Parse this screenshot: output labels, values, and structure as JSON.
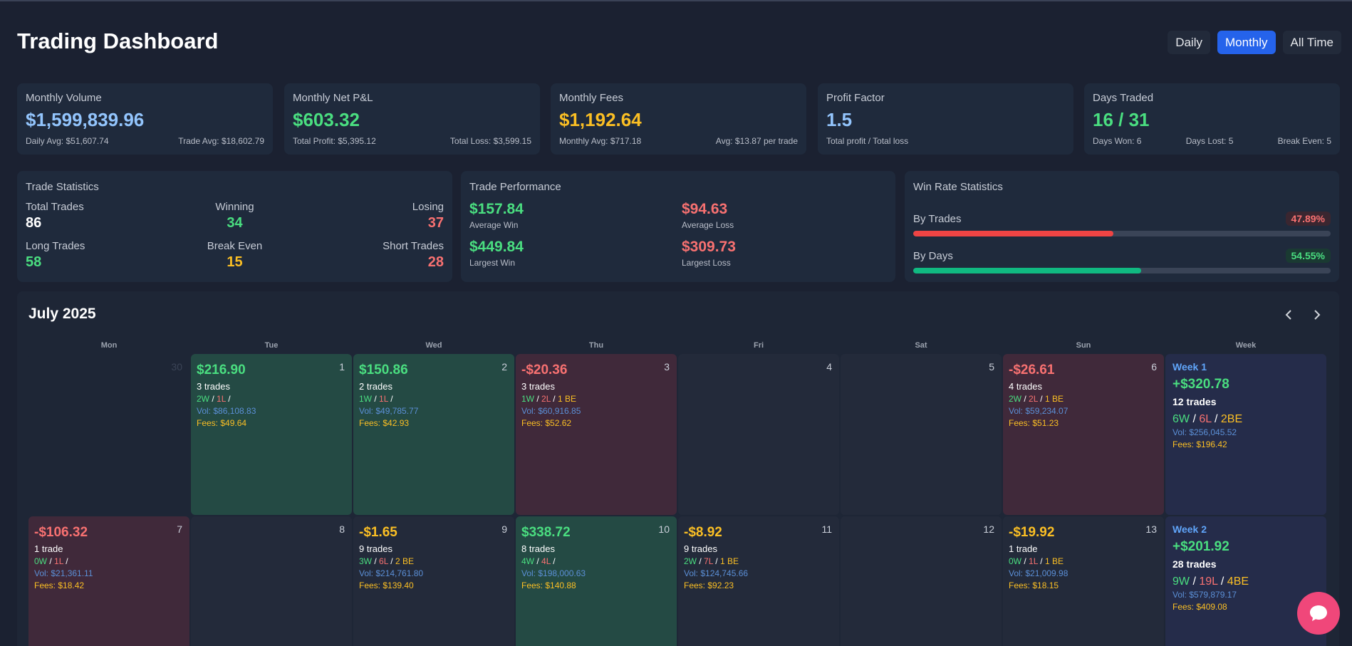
{
  "header": {
    "title": "Trading Dashboard",
    "ranges": [
      "Daily",
      "Monthly",
      "All Time"
    ],
    "active_range": "Monthly"
  },
  "summary": [
    {
      "label": "Monthly Volume",
      "value": "$1,599,839.96",
      "left": "Daily Avg: $51,607.74",
      "right": "Trade Avg: $18,602.79"
    },
    {
      "label": "Monthly Net P&L",
      "value": "$603.32",
      "left": "Total Profit: $5,395.12",
      "right": "Total Loss: $3,599.15"
    },
    {
      "label": "Monthly Fees",
      "value": "$1,192.64",
      "left": "Monthly Avg: $717.18",
      "right": "Avg: $13.87 per trade"
    },
    {
      "label": "Profit Factor",
      "value": "1.5",
      "left": "Total profit / Total loss",
      "right": ""
    },
    {
      "label": "Days Traded",
      "value": "16 / 31",
      "left": "Days Won: 6",
      "mid": "Days Lost: 5",
      "right": "Break Even: 5"
    }
  ],
  "trade_stats": {
    "title": "Trade Statistics",
    "total_label": "Total Trades",
    "total": "86",
    "winning_label": "Winning",
    "winning": "34",
    "losing_label": "Losing",
    "losing": "37",
    "long_label": "Long Trades",
    "long": "58",
    "be_label": "Break Even",
    "be": "15",
    "short_label": "Short Trades",
    "short": "28"
  },
  "trade_perf": {
    "title": "Trade Performance",
    "avg_win": "$157.84",
    "avg_win_label": "Average Win",
    "avg_loss": "$94.63",
    "avg_loss_label": "Average Loss",
    "largest_win": "$449.84",
    "largest_win_label": "Largest Win",
    "largest_loss": "$309.73",
    "largest_loss_label": "Largest Loss"
  },
  "win_rate": {
    "title": "Win Rate Statistics",
    "by_trades_label": "By Trades",
    "by_trades": "47.89%",
    "by_trades_fraction": 0.4789,
    "by_days_label": "By Days",
    "by_days": "54.55%",
    "by_days_fraction": 0.5455,
    "colors": {
      "trades": "#ef4444",
      "days": "#10b981"
    }
  },
  "calendar": {
    "title": "July 2025",
    "prev_icon": "chevron-left-icon",
    "next_icon": "chevron-right-icon",
    "weekdays": [
      "Mon",
      "Tue",
      "Wed",
      "Thu",
      "Fri",
      "Sat",
      "Sun",
      "Week"
    ],
    "days": [
      {
        "num": "30",
        "faded": true
      },
      {
        "num": "1",
        "type": "win",
        "pnl": "$216.90",
        "trades": "3 trades",
        "w": "2W",
        "l": "1L",
        "be": "",
        "vol": "Vol: $86,108.83",
        "fees": "Fees: $49.64"
      },
      {
        "num": "2",
        "type": "win",
        "pnl": "$150.86",
        "trades": "2 trades",
        "w": "1W",
        "l": "1L",
        "be": "",
        "vol": "Vol: $49,785.77",
        "fees": "Fees: $42.93"
      },
      {
        "num": "3",
        "type": "loss",
        "pnl": "-$20.36",
        "trades": "3 trades",
        "w": "1W",
        "l": "2L",
        "be": "1 BE",
        "vol": "Vol: $60,916.85",
        "fees": "Fees: $52.62"
      },
      {
        "num": "4"
      },
      {
        "num": "5"
      },
      {
        "num": "6",
        "type": "loss",
        "pnl": "-$26.61",
        "trades": "4 trades",
        "w": "2W",
        "l": "2L",
        "be": "1 BE",
        "vol": "Vol: $59,234.07",
        "fees": "Fees: $51.23"
      },
      {
        "num": "7",
        "type": "loss",
        "pnl": "-$106.32",
        "trades": "1 trade",
        "w": "0W",
        "l": "1L",
        "be": "",
        "vol": "Vol: $21,361.11",
        "fees": "Fees: $18.42"
      },
      {
        "num": "8"
      },
      {
        "num": "9",
        "type": "be",
        "pnl": "-$1.65",
        "trades": "9 trades",
        "w": "3W",
        "l": "6L",
        "be": "2 BE",
        "vol": "Vol: $214,761.80",
        "fees": "Fees: $139.40"
      },
      {
        "num": "10",
        "type": "win",
        "pnl": "$338.72",
        "trades": "8 trades",
        "w": "4W",
        "l": "4L",
        "be": "",
        "vol": "Vol: $198,000.63",
        "fees": "Fees: $140.88"
      },
      {
        "num": "11",
        "type": "be",
        "pnl": "-$8.92",
        "trades": "9 trades",
        "w": "2W",
        "l": "7L",
        "be": "1 BE",
        "vol": "Vol: $124,745.66",
        "fees": "Fees: $92.23"
      },
      {
        "num": "12"
      },
      {
        "num": "13",
        "type": "be",
        "pnl": "-$19.92",
        "trades": "1 trade",
        "w": "0W",
        "l": "1L",
        "be": "1 BE",
        "vol": "Vol: $21,009.98",
        "fees": "Fees: $18.15"
      }
    ],
    "weeks": [
      {
        "label": "Week 1",
        "pnl": "+$320.78",
        "trades": "12 trades",
        "w": "6W",
        "l": "6L",
        "be": "2BE",
        "vol": "Vol: $256,045.52",
        "fees": "Fees: $196.42"
      },
      {
        "label": "Week 2",
        "pnl": "+$201.92",
        "trades": "28 trades",
        "w": "9W",
        "l": "19L",
        "be": "4BE",
        "vol": "Vol: $579,879.17",
        "fees": "Fees: $409.08"
      }
    ]
  },
  "chat": {
    "icon": "chat-bubble-icon"
  }
}
